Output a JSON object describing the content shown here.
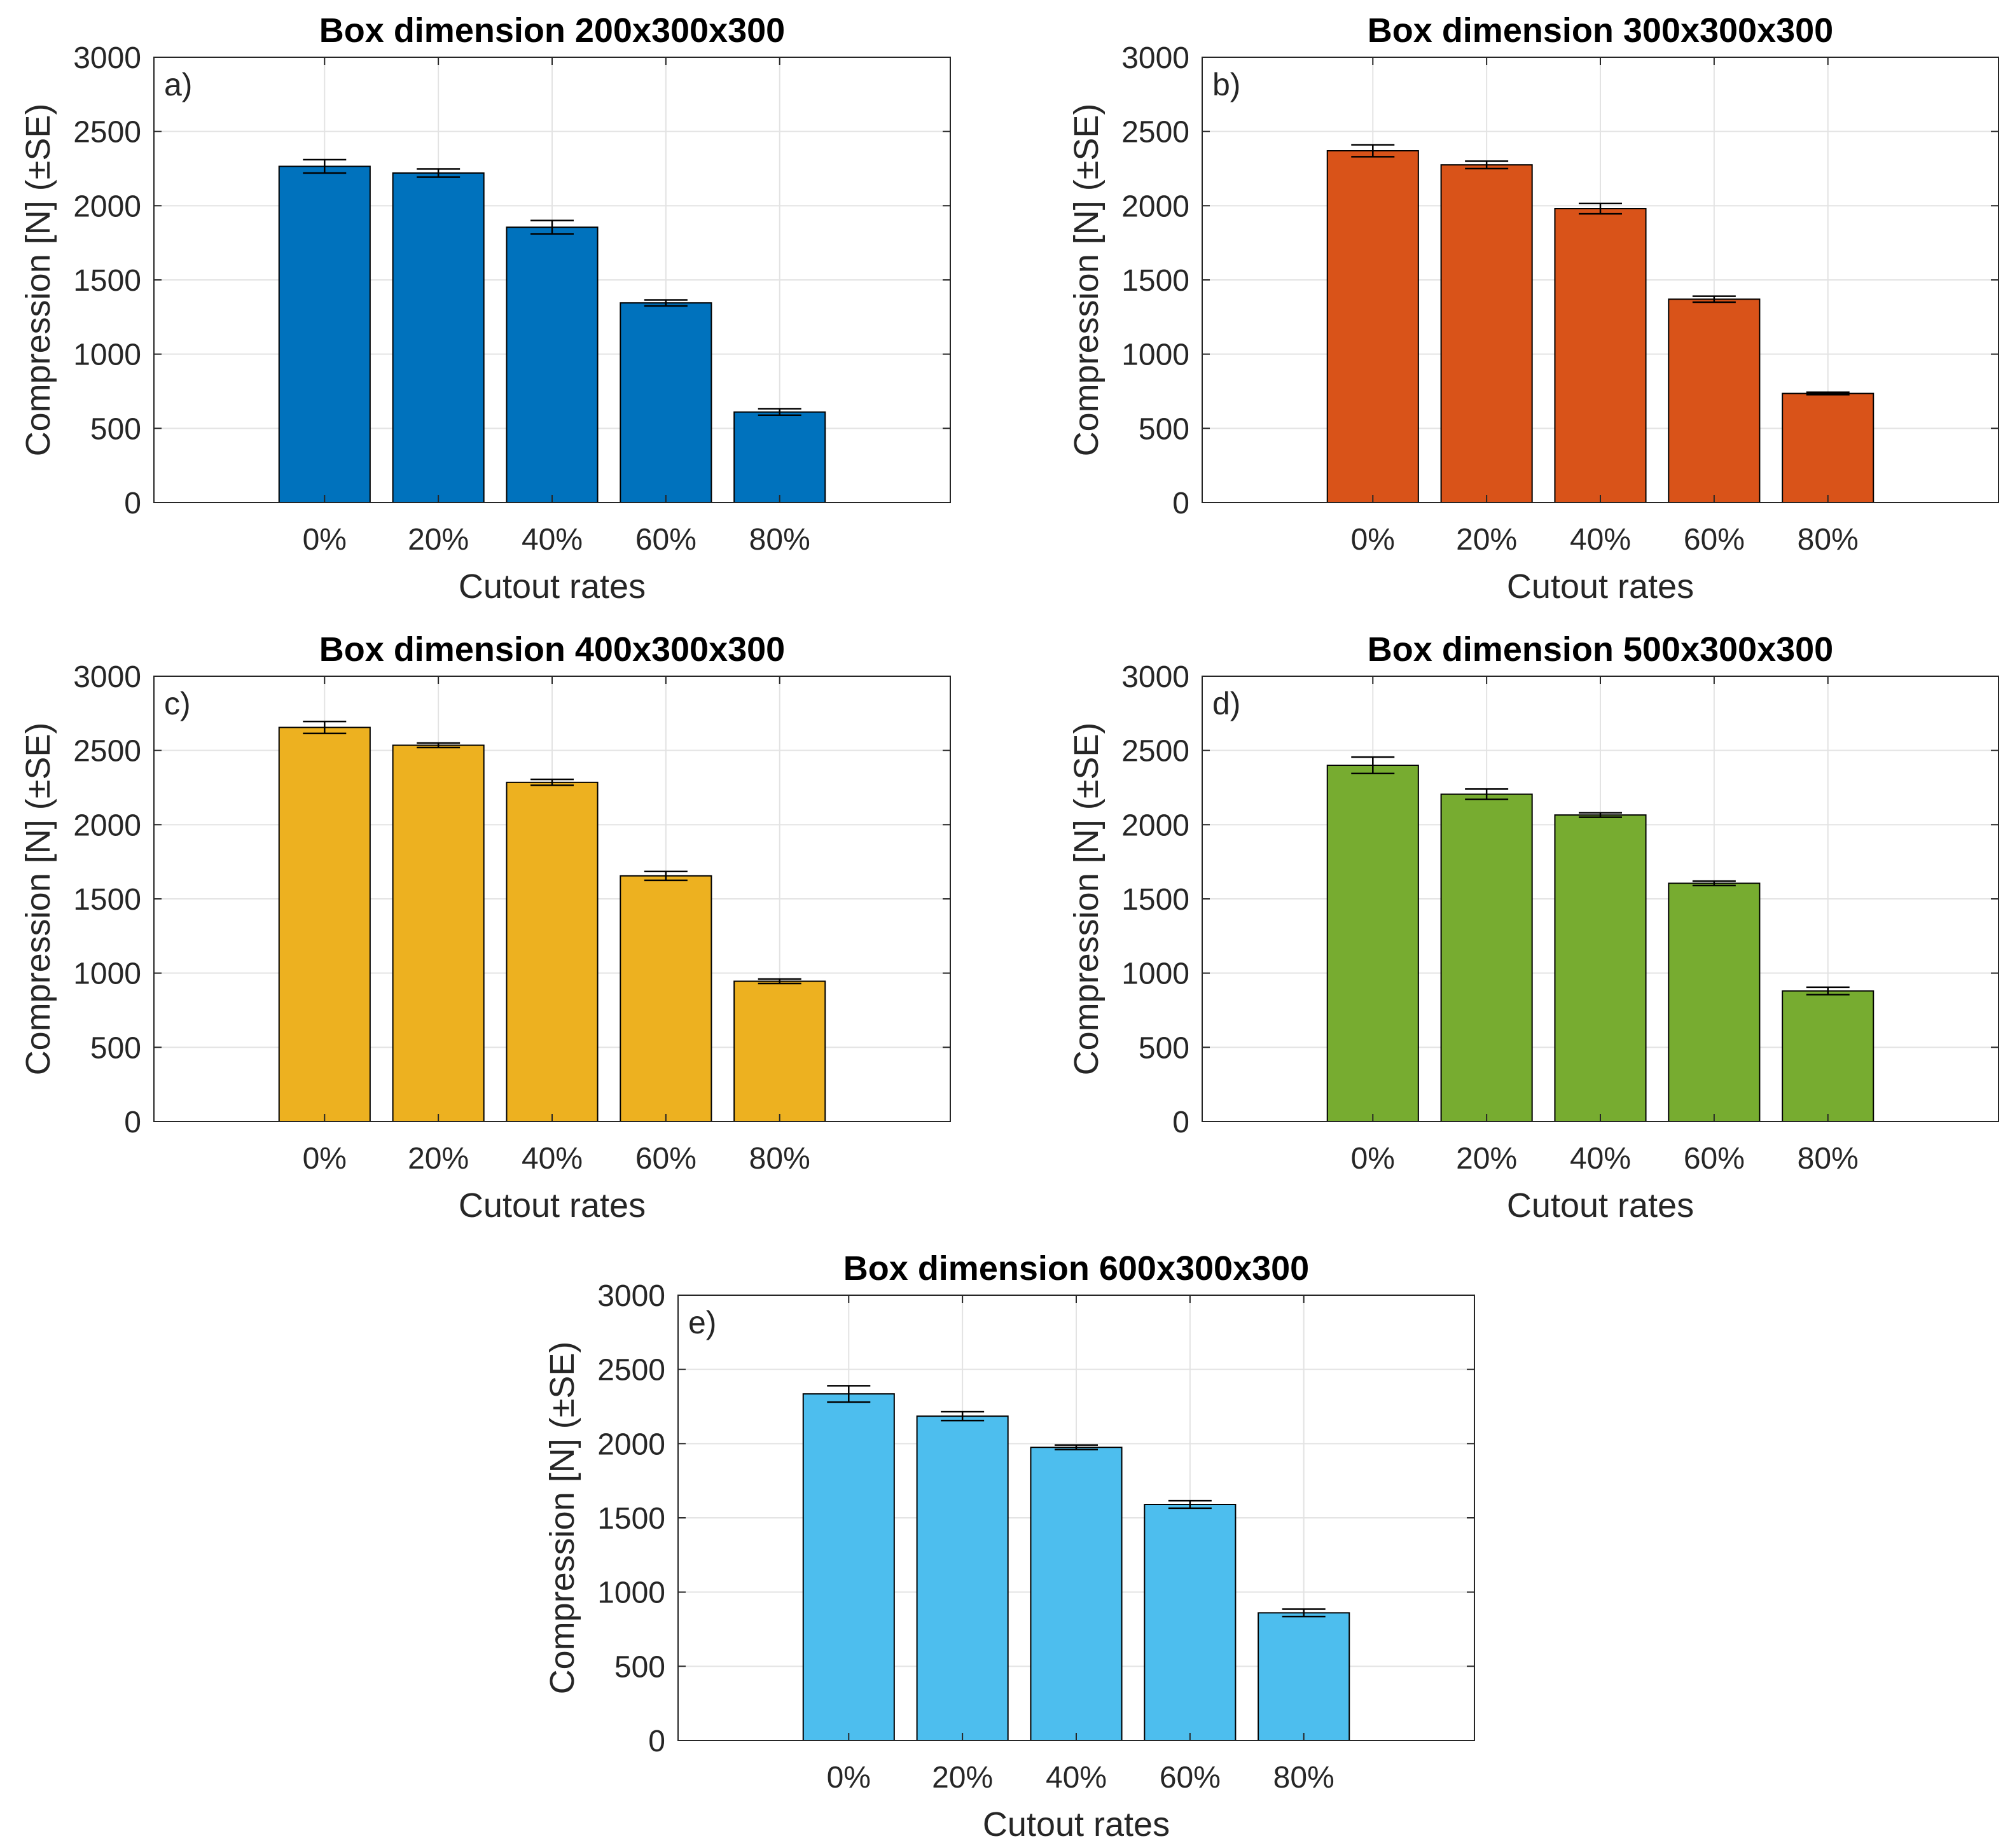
{
  "chart_data": [
    {
      "type": "bar",
      "title": "Box dimension 200x300x300",
      "panel_label": "a)",
      "xlabel": "Cutout rates",
      "ylabel": "Compression [N] (±SE)",
      "categories": [
        "0%",
        "20%",
        "40%",
        "60%",
        "80%"
      ],
      "values": [
        2265,
        2220,
        1855,
        1345,
        610
      ],
      "errors": [
        45,
        28,
        45,
        20,
        22
      ],
      "ylim": [
        0,
        3000
      ],
      "yticks": [
        0,
        500,
        1000,
        1500,
        2000,
        2500,
        3000
      ],
      "grid": true,
      "color": "#0072BD"
    },
    {
      "type": "bar",
      "title": "Box dimension 300x300x300",
      "panel_label": "b)",
      "xlabel": "Cutout rates",
      "ylabel": "Compression [N] (±SE)",
      "categories": [
        "0%",
        "20%",
        "40%",
        "60%",
        "80%"
      ],
      "values": [
        2370,
        2275,
        1980,
        1370,
        735
      ],
      "errors": [
        40,
        25,
        35,
        20,
        8
      ],
      "ylim": [
        0,
        3000
      ],
      "yticks": [
        0,
        500,
        1000,
        1500,
        2000,
        2500,
        3000
      ],
      "grid": true,
      "color": "#D95319"
    },
    {
      "type": "bar",
      "title": "Box dimension 400x300x300",
      "panel_label": "c)",
      "xlabel": "Cutout rates",
      "ylabel": "Compression [N] (±SE)",
      "categories": [
        "0%",
        "20%",
        "40%",
        "60%",
        "80%"
      ],
      "values": [
        2655,
        2535,
        2285,
        1655,
        945
      ],
      "errors": [
        40,
        15,
        20,
        30,
        15
      ],
      "ylim": [
        0,
        3000
      ],
      "yticks": [
        0,
        500,
        1000,
        1500,
        2000,
        2500,
        3000
      ],
      "grid": true,
      "color": "#EDB120"
    },
    {
      "type": "bar",
      "title": "Box dimension 500x300x300",
      "panel_label": "d)",
      "xlabel": "Cutout rates",
      "ylabel": "Compression [N] (±SE)",
      "categories": [
        "0%",
        "20%",
        "40%",
        "60%",
        "80%"
      ],
      "values": [
        2400,
        2205,
        2065,
        1605,
        880
      ],
      "errors": [
        55,
        35,
        15,
        15,
        25
      ],
      "ylim": [
        0,
        3000
      ],
      "yticks": [
        0,
        500,
        1000,
        1500,
        2000,
        2500,
        3000
      ],
      "grid": true,
      "color": "#77AC30"
    },
    {
      "type": "bar",
      "title": "Box dimension 600x300x300",
      "panel_label": "e)",
      "xlabel": "Cutout rates",
      "ylabel": "Compression [N] (±SE)",
      "categories": [
        "0%",
        "20%",
        "40%",
        "60%",
        "80%"
      ],
      "values": [
        2335,
        2185,
        1975,
        1590,
        860
      ],
      "errors": [
        55,
        30,
        15,
        25,
        25
      ],
      "ylim": [
        0,
        3000
      ],
      "yticks": [
        0,
        500,
        1000,
        1500,
        2000,
        2500,
        3000
      ],
      "grid": true,
      "color": "#4DBEEE"
    }
  ]
}
